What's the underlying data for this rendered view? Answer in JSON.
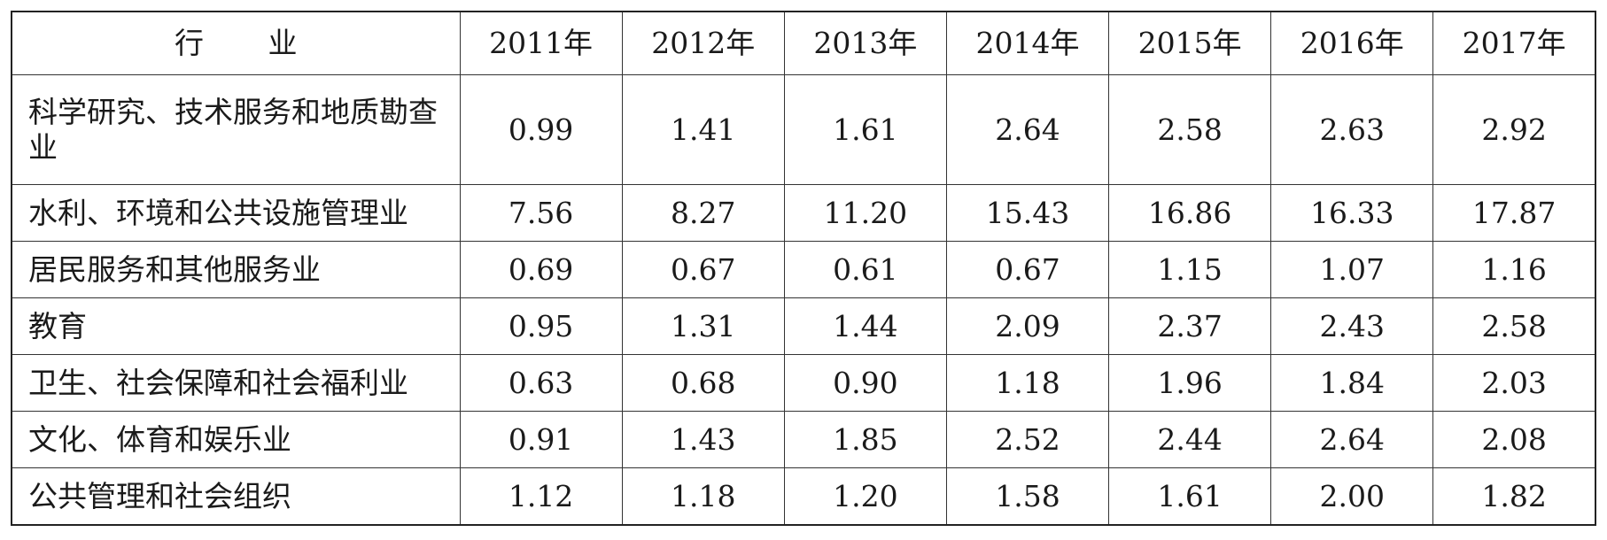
{
  "table": {
    "header": [
      "行业",
      "2011年",
      "2012年",
      "2013年",
      "2014年",
      "2015年",
      "2016年",
      "2017年"
    ],
    "rows": [
      [
        "科学研究、技术服务和地质勘查业",
        "0.99",
        "1.41",
        "1.61",
        "2.64",
        "2.58",
        "2.63",
        "2.92"
      ],
      [
        "水利、环境和公共设施管理业",
        "7.56",
        "8.27",
        "11.20",
        "15.43",
        "16.86",
        "16.33",
        "17.87"
      ],
      [
        "居民服务和其他服务业",
        "0.69",
        "0.67",
        "0.61",
        "0.67",
        "1.15",
        "1.07",
        "1.16"
      ],
      [
        "教育",
        "0.95",
        "1.31",
        "1.44",
        "2.09",
        "2.37",
        "2.43",
        "2.58"
      ],
      [
        "卫生、社会保障和社会福利业",
        "0.63",
        "0.68",
        "0.90",
        "1.18",
        "1.96",
        "1.84",
        "2.03"
      ],
      [
        "文化、体育和娱乐业",
        "0.91",
        "1.43",
        "1.85",
        "2.52",
        "2.44",
        "2.64",
        "2.08"
      ],
      [
        "公共管理和社会组织",
        "1.12",
        "1.18",
        "1.20",
        "1.58",
        "1.61",
        "2.00",
        "1.82"
      ]
    ]
  }
}
